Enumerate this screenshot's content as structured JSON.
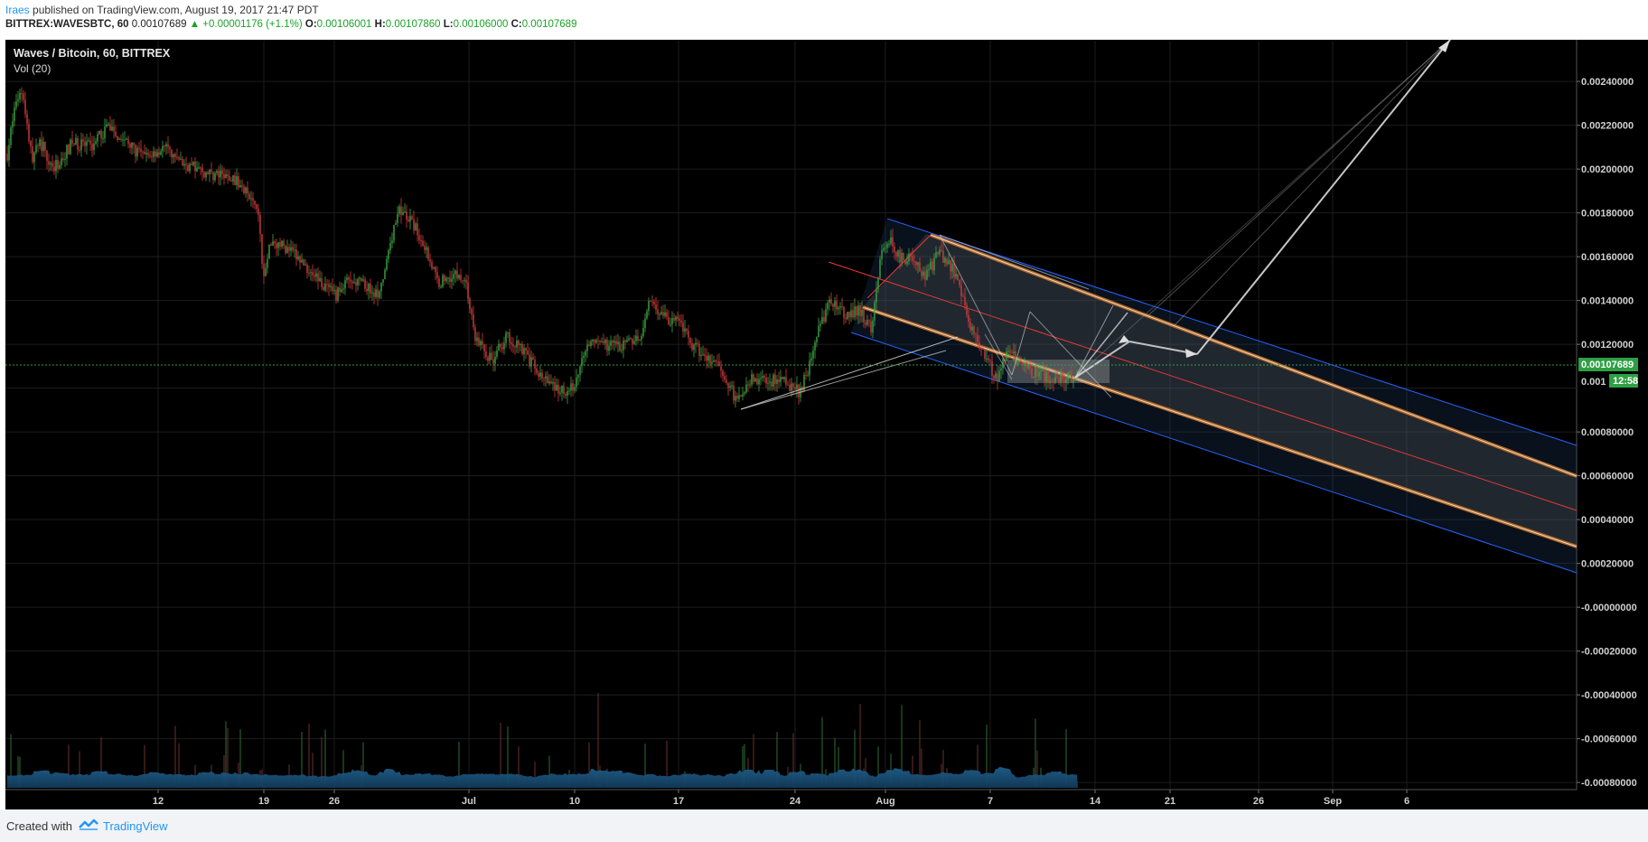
{
  "header": {
    "author": "Iraes",
    "published": "published on TradingView.com, August 19, 2017 21:47 PDT",
    "symbol": "BITTREX:WAVESBTC, 60",
    "last": "0.00107689",
    "change": "▲ +0.00001176 (+1.1%)",
    "o_label": "O:",
    "o_value": "0.00106001",
    "h_label": "H:",
    "h_value": "0.00107860",
    "l_label": "L:",
    "l_value": "0.00106000",
    "c_label": "C:",
    "c_value": "0.00107689"
  },
  "legend": {
    "title": "Waves / Bitcoin, 60, BITTREX",
    "volume": "Vol (20)"
  },
  "price_axis": {
    "ticks": [
      "0.00240000",
      "0.00220000",
      "0.00200000",
      "0.00180000",
      "0.00160000",
      "0.00140000",
      "0.00120000",
      "0.00080000",
      "0.00060000",
      "0.00040000",
      "0.00020000",
      "-0.00000000",
      "-0.00020000",
      "-0.00040000",
      "-0.00060000",
      "-0.00080000"
    ],
    "last_price_label": "0.00107689",
    "last_price_short": "0.001",
    "countdown": "12:58"
  },
  "time_axis": {
    "labels": [
      "12",
      "19",
      "26",
      "Jul",
      "10",
      "17",
      "24",
      "Aug",
      "7",
      "14",
      "21",
      "26",
      "Sep",
      "6"
    ]
  },
  "footer": {
    "created_with": "Created with",
    "brand": "TradingView"
  },
  "colors": {
    "background": "#000000",
    "up": "#3fa544",
    "down": "#d23c3c",
    "channel": "#2962ff",
    "median": "#e53935",
    "last_price": "#2ea043"
  }
}
